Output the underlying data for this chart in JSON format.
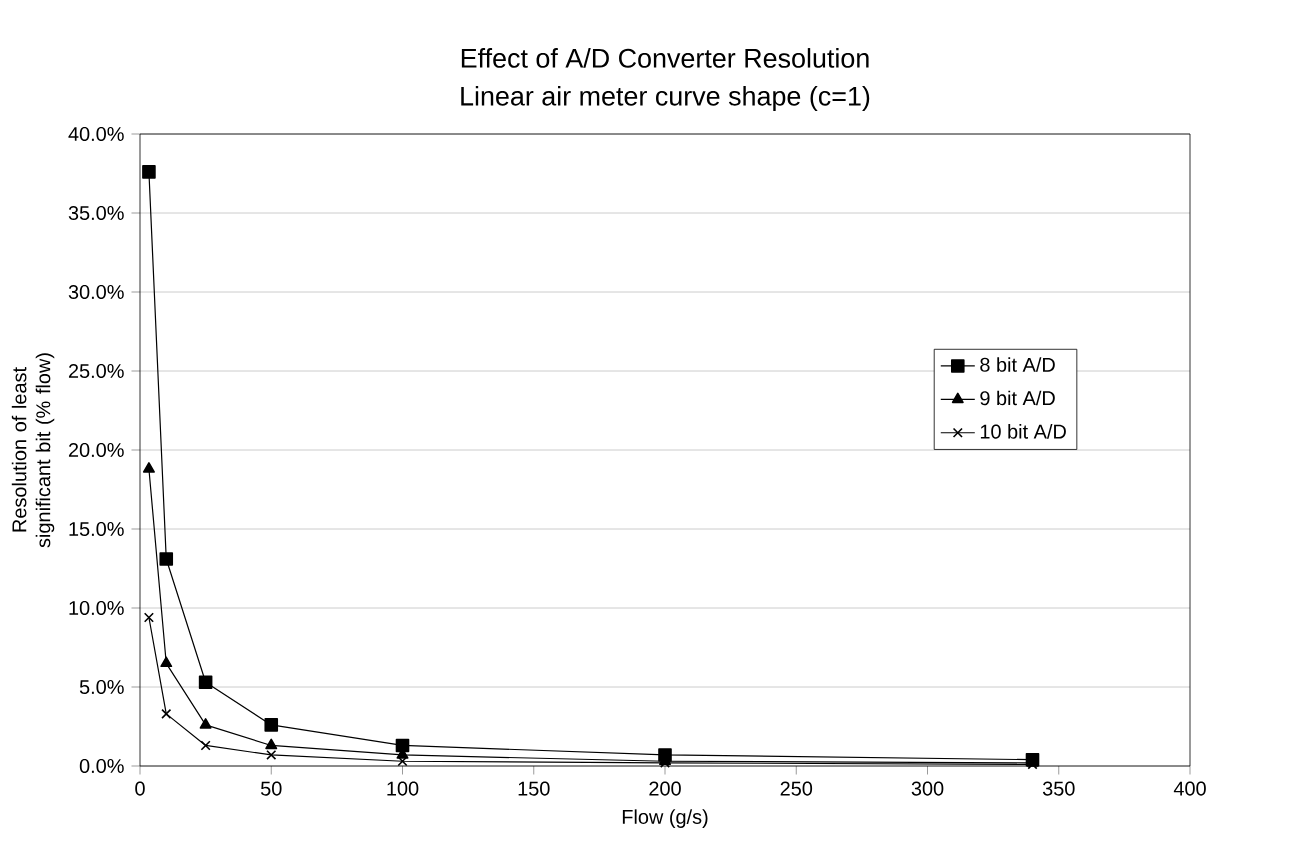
{
  "chart_data": {
    "type": "line",
    "title": "Effect of A/D Converter Resolution",
    "subtitle": "Linear air meter curve shape (c=1)",
    "xlabel": "Flow (g/s)",
    "ylabel": "Resolution of least significant bit (% flow)",
    "x": [
      3.4,
      10,
      25,
      50,
      100,
      200,
      340
    ],
    "series": [
      {
        "name": "8 bit A/D",
        "color": "#000000",
        "marker": "square",
        "values": [
          37.6,
          13.1,
          5.3,
          2.6,
          1.3,
          0.7,
          0.4
        ]
      },
      {
        "name": "9 bit A/D",
        "color": "#000000",
        "marker": "triangle",
        "values": [
          18.8,
          6.5,
          2.6,
          1.3,
          0.7,
          0.3,
          0.2
        ]
      },
      {
        "name": "10 bit A/D",
        "color": "#000000",
        "marker": "cross",
        "values": [
          9.4,
          3.3,
          1.3,
          0.7,
          0.3,
          0.2,
          0.1
        ]
      }
    ],
    "xlim": [
      0,
      400
    ],
    "xticks": [
      0,
      50,
      100,
      150,
      200,
      250,
      300,
      350,
      400
    ],
    "ylim": [
      0,
      40
    ],
    "yticks": [
      {
        "value": 0,
        "label": "0.0%"
      },
      {
        "value": 5,
        "label": "5.0%"
      },
      {
        "value": 10,
        "label": "10.0%"
      },
      {
        "value": 15,
        "label": "15.0%"
      },
      {
        "value": 20,
        "label": "20.0%"
      },
      {
        "value": 25,
        "label": "25.0%"
      },
      {
        "value": 30,
        "label": "30.0%"
      },
      {
        "value": 35,
        "label": "35.0%"
      },
      {
        "value": 40,
        "label": "40.0%"
      }
    ],
    "grid": "y",
    "legend": "right",
    "line_style": "solid"
  }
}
